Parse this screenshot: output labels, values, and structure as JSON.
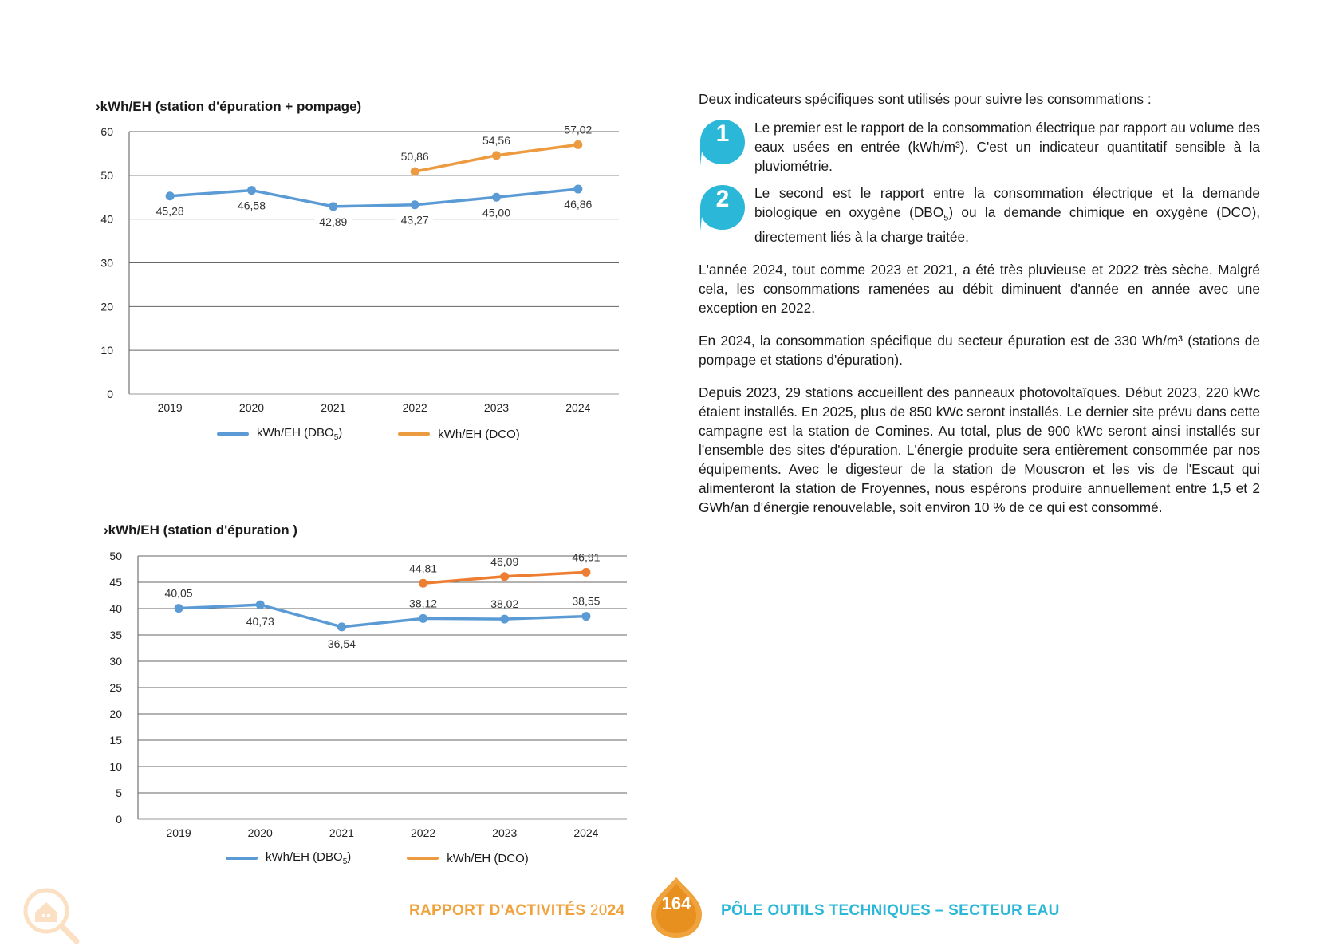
{
  "chart_data": [
    {
      "type": "line",
      "title": "›kWh/EH (station d'épuration + pompage)",
      "categories": [
        "2019",
        "2020",
        "2021",
        "2022",
        "2023",
        "2024"
      ],
      "ylim": [
        0,
        60
      ],
      "yticks": [
        0,
        10,
        20,
        30,
        40,
        50,
        60
      ],
      "grid": true,
      "legend": "bottom",
      "series": [
        {
          "name": "kWh/EH (DBO",
          "name_sub": "5",
          "name_suffix": ")",
          "color": "#5b9bd5",
          "values": [
            45.28,
            46.58,
            42.89,
            43.27,
            45.0,
            46.86
          ],
          "labels": [
            "45,28",
            "46,58",
            "42,89",
            "43,27",
            "45,00",
            "46,86"
          ]
        },
        {
          "name": "kWh/EH (DCO)",
          "color": "#ed9b40",
          "values": [
            null,
            null,
            null,
            50.86,
            54.56,
            57.02
          ],
          "labels": [
            "",
            "",
            "",
            "50,86",
            "54,56",
            "57,02"
          ]
        }
      ]
    },
    {
      "type": "line",
      "title": "›kWh/EH (station d'épuration )",
      "categories": [
        "2019",
        "2020",
        "2021",
        "2022",
        "2023",
        "2024"
      ],
      "ylim": [
        0,
        50
      ],
      "yticks": [
        0,
        5,
        10,
        15,
        20,
        25,
        30,
        35,
        40,
        45,
        50
      ],
      "grid": true,
      "legend": "bottom",
      "series": [
        {
          "name": "kWh/EH (DBO",
          "name_sub": "5",
          "name_suffix": ")",
          "color": "#5b9bd5",
          "values": [
            40.05,
            40.73,
            36.54,
            38.12,
            38.02,
            38.55
          ],
          "labels": [
            "40,05",
            "40,73",
            "36,54",
            "38,12",
            "38,02",
            "38,55"
          ]
        },
        {
          "name": "kWh/EH (DCO)",
          "color": "#ed7d31",
          "values": [
            null,
            null,
            null,
            44.81,
            46.09,
            46.91
          ],
          "labels": [
            "",
            "",
            "",
            "44,81",
            "46,09",
            "46,91"
          ]
        }
      ]
    }
  ],
  "text": {
    "intro": "Deux indicateurs spécifiques sont utilisés pour suivre les consommations :",
    "item1_num": "1",
    "item1": "Le premier est le rapport de la consommation électrique par rapport au volume des eaux usées en entrée (kWh/m³). C'est un indicateur quantitatif sensible à la pluviométrie.",
    "item2_num": "2",
    "item2_a": "Le second est le rapport entre la consommation électrique et la demande biologique en oxygène (DBO",
    "item2_sub": "5",
    "item2_b": ") ou la demande chimique en oxygène (DCO), directement liés à la charge traitée.",
    "para1": "L'année 2024, tout comme 2023 et 2021, a été très pluvieuse et 2022 très sèche. Malgré cela, les consommations ramenées au débit diminuent d'année en année avec une exception en 2022.",
    "para2": "En 2024, la consommation spécifique du secteur épuration est de 330 Wh/m³ (stations de pompage et stations d'épuration).",
    "para3": "Depuis 2023, 29 stations accueillent des panneaux photovoltaïques. Début 2023, 220 kWc étaient installés. En 2025, plus de 850 kWc seront installés. Le dernier site prévu dans cette campagne est la station de Comines. Au total, plus de 900 kWc seront ainsi installés sur l'ensemble des sites d'épuration. L'énergie produite sera entièrement consommée par nos équipements. Avec le digesteur de la station de Mouscron et les vis de l'Escaut qui alimenteront la station de Froyennes, nous espérons produire annuellement entre 1,5 et 2 GWh/an d'énergie renouvelable, soit environ 10 % de ce qui est consommé."
  },
  "footer": {
    "left_a": "RAPPORT D'ACTIVITÉS ",
    "left_y1": "20",
    "left_y2": "24",
    "page": "164",
    "right": "PÔLE OUTILS TECHNIQUES – SECTEUR EAU"
  },
  "icons": {
    "home": "home-search-icon",
    "badge1": "drop-badge-icon",
    "page": "water-drop-icon"
  }
}
